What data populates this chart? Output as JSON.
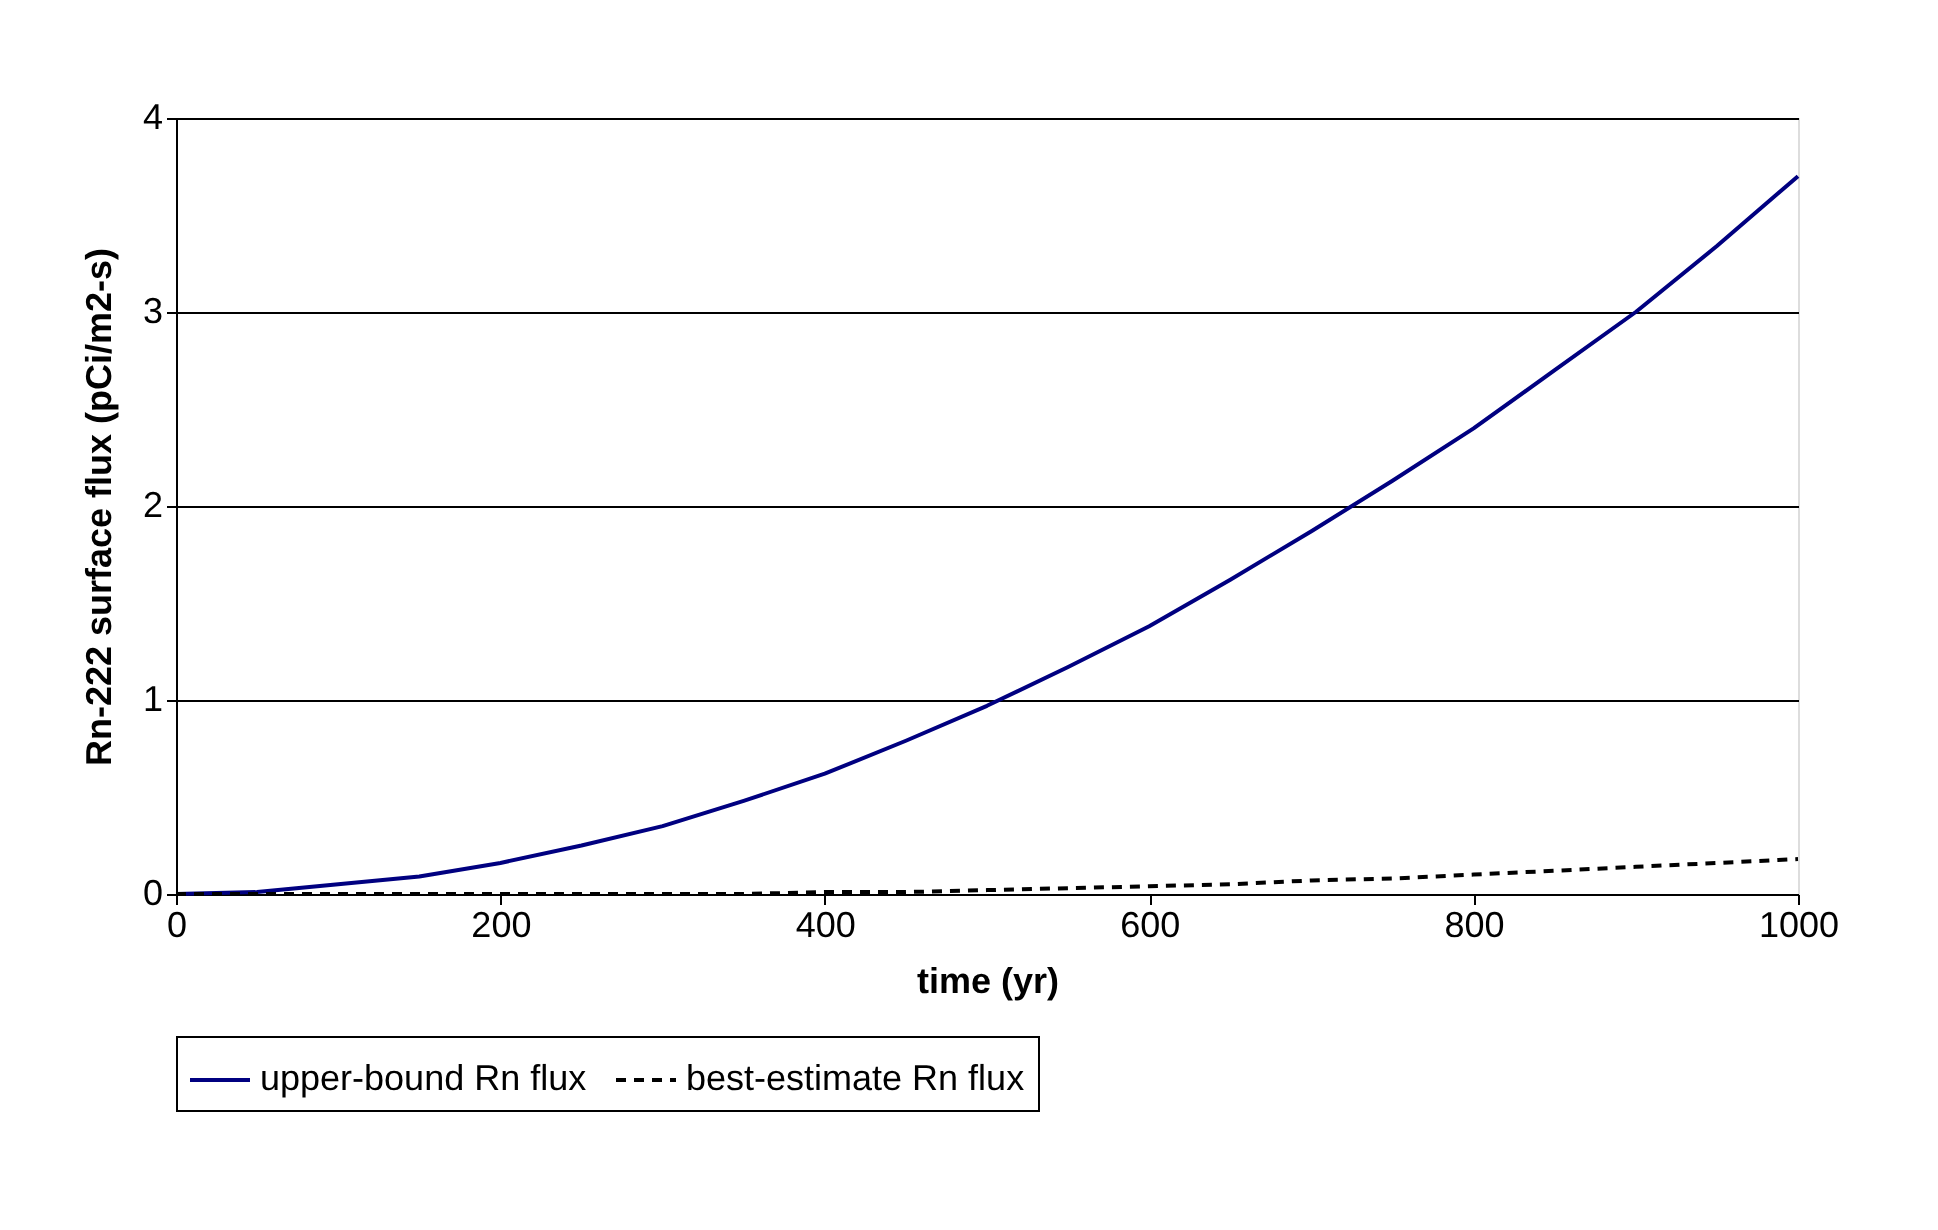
{
  "chart_data": {
    "type": "line",
    "xlabel": "time (yr)",
    "ylabel": "Rn-222 surface flux (pCi/m2-s)",
    "x": [
      0,
      50,
      100,
      150,
      200,
      250,
      300,
      350,
      400,
      450,
      500,
      550,
      600,
      650,
      700,
      750,
      800,
      850,
      900,
      950,
      1000
    ],
    "series": [
      {
        "name": "upper-bound Rn flux",
        "color": "#000080",
        "line_style": "solid",
        "values": [
          0,
          0.01,
          0.05,
          0.09,
          0.16,
          0.25,
          0.35,
          0.48,
          0.62,
          0.79,
          0.97,
          1.17,
          1.38,
          1.62,
          1.87,
          2.13,
          2.4,
          2.7,
          3.0,
          3.34,
          3.7
        ]
      },
      {
        "name": "best-estimate Rn flux",
        "color": "#000000",
        "line_style": "dashed",
        "values": [
          0,
          0,
          0,
          0,
          0,
          0,
          0,
          0,
          0.01,
          0.01,
          0.02,
          0.03,
          0.04,
          0.05,
          0.07,
          0.08,
          0.1,
          0.12,
          0.14,
          0.16,
          0.18
        ]
      }
    ],
    "xlim": [
      0,
      1000
    ],
    "xticks": [
      0,
      200,
      400,
      600,
      800,
      {
        "value": 1000,
        "label": "1000"
      }
    ],
    "ylim": [
      0,
      4
    ],
    "yticks": [
      0,
      1,
      2,
      3,
      4
    ],
    "grid": "y",
    "legend": "bottom",
    "marker": "none"
  }
}
